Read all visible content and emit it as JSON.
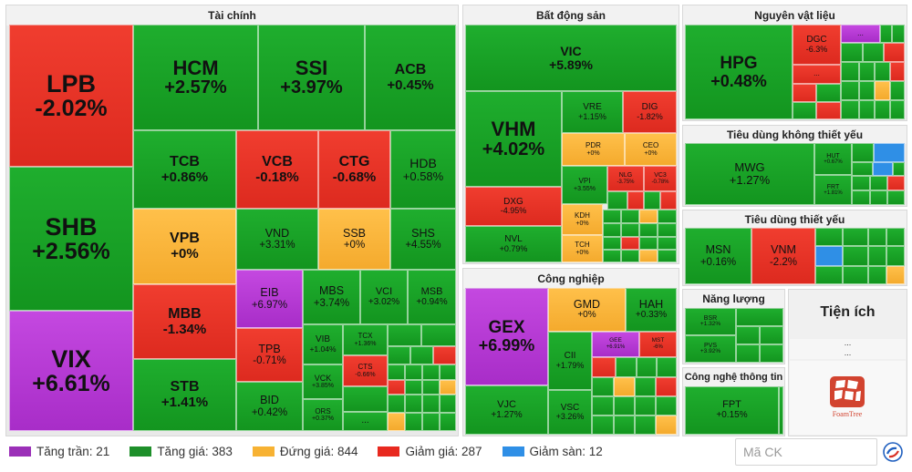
{
  "sectors": {
    "tai_chinh": "Tài chính",
    "bat_dong_san": "Bất động sản",
    "nguyen_vat_lieu": "Nguyên vật liệu",
    "tieu_dung_khong_thiet_yeu": "Tiêu dùng không thiết yếu",
    "tieu_dung_thiet_yeu": "Tiêu dùng thiết yếu",
    "cong_nghiep": "Công nghiệp",
    "nang_luong": "Năng lượng",
    "tien_ich": "Tiện ích",
    "cong_nghe_thong_tin": "Công nghệ thông tin"
  },
  "tiles": {
    "lpb": {
      "s": "LPB",
      "c": "-2.02%"
    },
    "shb": {
      "s": "SHB",
      "c": "+2.56%"
    },
    "vix": {
      "s": "VIX",
      "c": "+6.61%"
    },
    "hcm": {
      "s": "HCM",
      "c": "+2.57%"
    },
    "ssi": {
      "s": "SSI",
      "c": "+3.97%"
    },
    "acb": {
      "s": "ACB",
      "c": "+0.45%"
    },
    "tcb": {
      "s": "TCB",
      "c": "+0.86%"
    },
    "vcb": {
      "s": "VCB",
      "c": "-0.18%"
    },
    "ctg": {
      "s": "CTG",
      "c": "-0.68%"
    },
    "hdb": {
      "s": "HDB",
      "c": "+0.58%"
    },
    "vpb": {
      "s": "VPB",
      "c": "+0%"
    },
    "vnd": {
      "s": "VND",
      "c": "+3.31%"
    },
    "ssb": {
      "s": "SSB",
      "c": "+0%"
    },
    "shs": {
      "s": "SHS",
      "c": "+4.55%"
    },
    "mbb": {
      "s": "MBB",
      "c": "-1.34%"
    },
    "eib": {
      "s": "EIB",
      "c": "+6.97%"
    },
    "mbs": {
      "s": "MBS",
      "c": "+3.74%"
    },
    "vci": {
      "s": "VCI",
      "c": "+3.02%"
    },
    "msb": {
      "s": "MSB",
      "c": "+0.94%"
    },
    "stb": {
      "s": "STB",
      "c": "+1.41%"
    },
    "tpb": {
      "s": "TPB",
      "c": "-0.71%"
    },
    "vib": {
      "s": "VIB",
      "c": "+1.04%"
    },
    "tcx": {
      "s": "TCX",
      "c": "+1.36%"
    },
    "vck": {
      "s": "VCK",
      "c": "+3.85%"
    },
    "cts": {
      "s": "CTS",
      "c": "-0.66%"
    },
    "bid": {
      "s": "BID",
      "c": "+0.42%"
    },
    "ors": {
      "s": "ORS",
      "c": "+0.37%"
    },
    "vic": {
      "s": "VIC",
      "c": "+5.89%"
    },
    "vhm": {
      "s": "VHM",
      "c": "+4.02%"
    },
    "vre": {
      "s": "VRE",
      "c": "+1.15%"
    },
    "dig": {
      "s": "DIG",
      "c": "-1.82%"
    },
    "pdr": {
      "s": "PDR",
      "c": "+0%"
    },
    "ceo": {
      "s": "CEO",
      "c": "+0%"
    },
    "dxg": {
      "s": "DXG",
      "c": "-4.95%"
    },
    "vpi": {
      "s": "VPI",
      "c": "+3.55%"
    },
    "nlg": {
      "s": "NLG",
      "c": "-3.75%"
    },
    "vc3": {
      "s": "VC3",
      "c": "-0.78%"
    },
    "kdh": {
      "s": "KDH",
      "c": "+0%"
    },
    "nvl": {
      "s": "NVL",
      "c": "+0.79%"
    },
    "tch": {
      "s": "TCH",
      "c": "+0%"
    },
    "gex": {
      "s": "GEX",
      "c": "+6.99%"
    },
    "gmd": {
      "s": "GMD",
      "c": "+0%"
    },
    "hah": {
      "s": "HAH",
      "c": "+0.33%"
    },
    "cii": {
      "s": "CII",
      "c": "+1.79%"
    },
    "gee": {
      "s": "GEE",
      "c": "+6.91%"
    },
    "mst": {
      "s": "MST",
      "c": "-6%"
    },
    "vjc": {
      "s": "VJC",
      "c": "+1.27%"
    },
    "vsc": {
      "s": "VSC",
      "c": "+3.26%"
    },
    "hpg": {
      "s": "HPG",
      "c": "+0.48%"
    },
    "dgc": {
      "s": "DGC",
      "c": "-6.3%"
    },
    "mwg": {
      "s": "MWG",
      "c": "+1.27%"
    },
    "hut": {
      "s": "HUT",
      "c": "+0.67%"
    },
    "frt": {
      "s": "FRT",
      "c": "+1.81%"
    },
    "msn": {
      "s": "MSN",
      "c": "+0.16%"
    },
    "vnm": {
      "s": "VNM",
      "c": "-2.2%"
    },
    "bsr": {
      "s": "BSR",
      "c": "+1.32%"
    },
    "pvs": {
      "s": "PVS",
      "c": "+3.92%"
    },
    "fpt": {
      "s": "FPT",
      "c": "+0.15%"
    }
  },
  "more_label": "...",
  "legend": [
    {
      "label": "Tăng trần: 21",
      "color": "#9b30b8"
    },
    {
      "label": "Tăng giá: 383",
      "color": "#1e8f2a"
    },
    {
      "label": "Đứng giá: 844",
      "color": "#f7b233"
    },
    {
      "label": "Giảm giá: 287",
      "color": "#e8291f"
    },
    {
      "label": "Giảm sàn: 12",
      "color": "#2f8fe6"
    }
  ],
  "search": {
    "placeholder": "Mã CK"
  },
  "foamtree_label": "FoamTree"
}
